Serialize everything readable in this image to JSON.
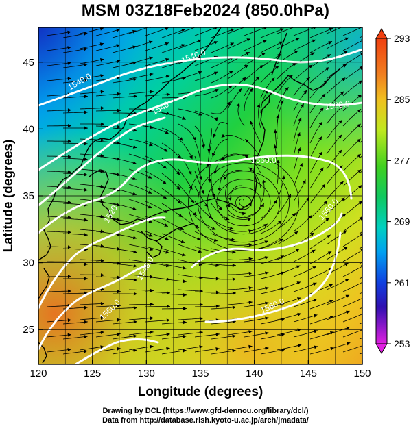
{
  "title": "MSM 03Z18Feb2024 (850.0hPa)",
  "axes": {
    "xlabel": "Longitude (degrees)",
    "ylabel": "Latitude  (degrees)",
    "x_ticks": [
      "120",
      "125",
      "130",
      "135",
      "140",
      "145",
      "150"
    ],
    "y_ticks": [
      "25",
      "30",
      "35",
      "40",
      "45"
    ],
    "x_range": [
      120,
      150
    ],
    "y_range": [
      22.4,
      47.6
    ]
  },
  "colorbar": {
    "ticks": [
      "293",
      "285",
      "277",
      "269",
      "261",
      "253"
    ],
    "range": [
      253,
      293
    ],
    "colors": [
      "#e020e0",
      "#6010c0",
      "#1020d0",
      "#0060ff",
      "#00b0f0",
      "#00d8b0",
      "#10d050",
      "#60e020",
      "#c0e820",
      "#f0d020",
      "#f09020",
      "#f04010"
    ]
  },
  "contours": {
    "labels": [
      "1540.0",
      "1520.0",
      "1560.0",
      "1520",
      "1540",
      "1540.0",
      "1540.0",
      "1560.0",
      "1560.0",
      "1560.0"
    ]
  },
  "credits": {
    "line1": "Drawing by DCL (https://www.gfd-dennou.org/library/dcl/)",
    "line2": "Data from http://database.rish.kyoto-u.ac.jp/arch/jmadata/"
  }
}
